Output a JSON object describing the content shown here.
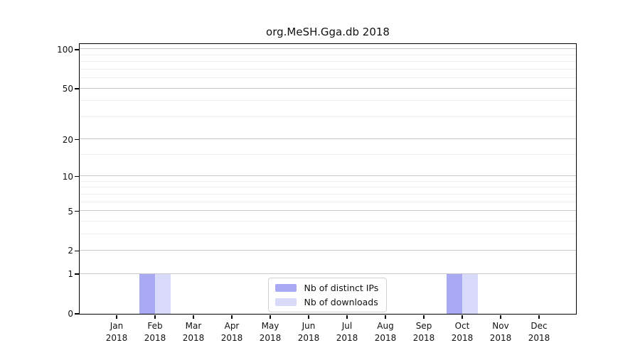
{
  "chart_data": {
    "type": "bar",
    "title": "org.MeSH.Gga.db 2018",
    "categories": [
      "Jan",
      "Feb",
      "Mar",
      "Apr",
      "May",
      "Jun",
      "Jul",
      "Aug",
      "Sep",
      "Oct",
      "Nov",
      "Dec"
    ],
    "x_tick_year": "2018",
    "series": [
      {
        "name": "Nb of distinct IPs",
        "color": "#a9a9f4",
        "values": [
          0,
          1,
          0,
          0,
          0,
          0,
          0,
          0,
          0,
          1,
          0,
          0
        ]
      },
      {
        "name": "Nb of downloads",
        "color": "#d9d9f9",
        "values": [
          0,
          1,
          0,
          0,
          0,
          0,
          0,
          0,
          0,
          1,
          0,
          0
        ]
      }
    ],
    "y_axis": {
      "scale": "log1p",
      "ticks": [
        0,
        1,
        2,
        5,
        10,
        20,
        50,
        100
      ],
      "minor_gridlines": [
        3,
        4,
        6,
        7,
        8,
        9,
        15,
        30,
        40,
        60,
        70,
        80,
        90
      ],
      "max": 100
    },
    "xlabel": "",
    "ylabel": "",
    "grid": true,
    "legend_position": "bottom-center"
  },
  "colors": {
    "background": "#ffffff",
    "axis": "#000000",
    "major_grid": "#c8c8c8",
    "minor_grid": "#ededed",
    "bar_distinct_ips": "#a9a9f4",
    "bar_downloads": "#d9d9f9"
  }
}
